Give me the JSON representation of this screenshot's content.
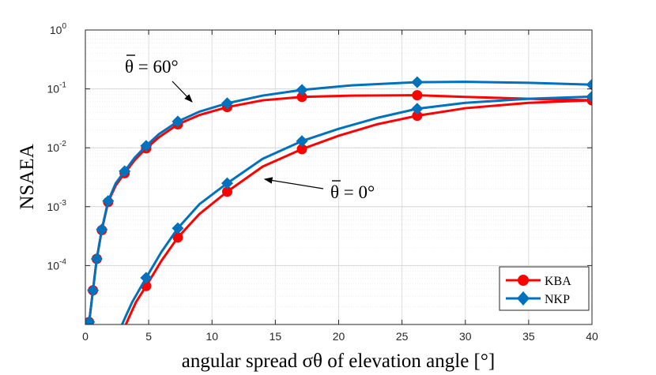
{
  "chart_data": {
    "type": "line",
    "title": "",
    "xlabel": "angular spread σθ of elevation angle [°]",
    "ylabel": "NSAEA",
    "xlim": [
      0,
      40
    ],
    "ylim": [
      1e-05,
      1
    ],
    "yscale": "log",
    "grid": true,
    "legend_position": "bottom-right",
    "x_ticks": [
      0,
      5,
      10,
      15,
      20,
      25,
      30,
      35,
      40
    ],
    "y_ticks": [
      {
        "value": 1e-05,
        "base": "",
        "exp": ""
      },
      {
        "value": 0.0001,
        "base": "10",
        "exp": "-4"
      },
      {
        "value": 0.001,
        "base": "10",
        "exp": "-3"
      },
      {
        "value": 0.01,
        "base": "10",
        "exp": "-2"
      },
      {
        "value": 0.1,
        "base": "10",
        "exp": "-1"
      },
      {
        "value": 1,
        "base": "10",
        "exp": "0"
      }
    ],
    "series": [
      {
        "name": "KBA",
        "group": "theta60",
        "color": "#ff0000",
        "marker": "circle",
        "x": [
          0.3,
          0.6,
          0.9,
          1.3,
          1.8,
          2.4,
          3.1,
          3.9,
          4.8,
          5.8,
          7.3,
          9.0,
          11.2,
          14.0,
          17.1,
          21.0,
          26.2,
          30.0,
          35.0,
          40.0
        ],
        "y": [
          1.1e-05,
          3.8e-05,
          0.00013,
          0.0004,
          0.0012,
          0.0023,
          0.0037,
          0.0062,
          0.0098,
          0.015,
          0.025,
          0.036,
          0.049,
          0.064,
          0.073,
          0.077,
          0.078,
          0.073,
          0.068,
          0.064
        ],
        "marker_x": [
          0.3,
          0.6,
          0.9,
          1.3,
          1.8,
          3.1,
          4.8,
          7.3,
          11.2,
          17.1,
          26.2,
          40.0
        ]
      },
      {
        "name": "NKP",
        "group": "theta60",
        "color": "#0072bd",
        "marker": "diamond",
        "x": [
          0.3,
          0.6,
          0.9,
          1.3,
          1.8,
          2.4,
          3.1,
          3.9,
          4.8,
          5.8,
          7.3,
          9.0,
          11.2,
          14.0,
          17.1,
          21.0,
          26.2,
          30.0,
          35.0,
          40.0
        ],
        "y": [
          1.1e-05,
          3.8e-05,
          0.00013,
          0.00041,
          0.00125,
          0.0025,
          0.004,
          0.0068,
          0.0108,
          0.017,
          0.028,
          0.041,
          0.057,
          0.077,
          0.096,
          0.115,
          0.13,
          0.132,
          0.127,
          0.118
        ],
        "marker_x": [
          0.3,
          0.6,
          0.9,
          1.3,
          1.8,
          3.1,
          4.8,
          7.3,
          11.2,
          17.1,
          26.2,
          40.0
        ]
      },
      {
        "name": "KBA",
        "group": "theta0",
        "color": "#ff0000",
        "marker": "circle",
        "x": [
          3.2,
          3.5,
          4.0,
          4.8,
          6.0,
          7.3,
          9.0,
          11.2,
          14.0,
          17.1,
          20.0,
          23.0,
          26.2,
          30.0,
          35.0,
          40.0
        ],
        "y": [
          1e-05,
          1.4e-05,
          2.4e-05,
          4.5e-05,
          0.00012,
          0.0003,
          0.00075,
          0.0018,
          0.0048,
          0.0095,
          0.016,
          0.025,
          0.035,
          0.047,
          0.058,
          0.064
        ],
        "marker_x": [
          4.8,
          7.3,
          11.2,
          17.1,
          26.2,
          40.0
        ]
      },
      {
        "name": "NKP",
        "group": "theta0",
        "color": "#0072bd",
        "marker": "diamond",
        "x": [
          2.9,
          3.2,
          3.7,
          4.8,
          6.0,
          7.3,
          9.0,
          11.2,
          14.0,
          17.1,
          20.0,
          23.0,
          26.2,
          30.0,
          35.0,
          40.0
        ],
        "y": [
          1e-05,
          1.4e-05,
          2.4e-05,
          6.2e-05,
          0.00017,
          0.00043,
          0.0011,
          0.0025,
          0.0065,
          0.013,
          0.021,
          0.032,
          0.046,
          0.058,
          0.068,
          0.074
        ],
        "marker_x": [
          4.8,
          7.3,
          11.2,
          17.1,
          26.2,
          40.0
        ]
      }
    ],
    "annotations": [
      {
        "text": "θ = 60°",
        "group": "theta60"
      },
      {
        "text": "θ = 0°",
        "group": "theta0"
      }
    ],
    "legend": [
      "KBA",
      "NKP"
    ]
  }
}
